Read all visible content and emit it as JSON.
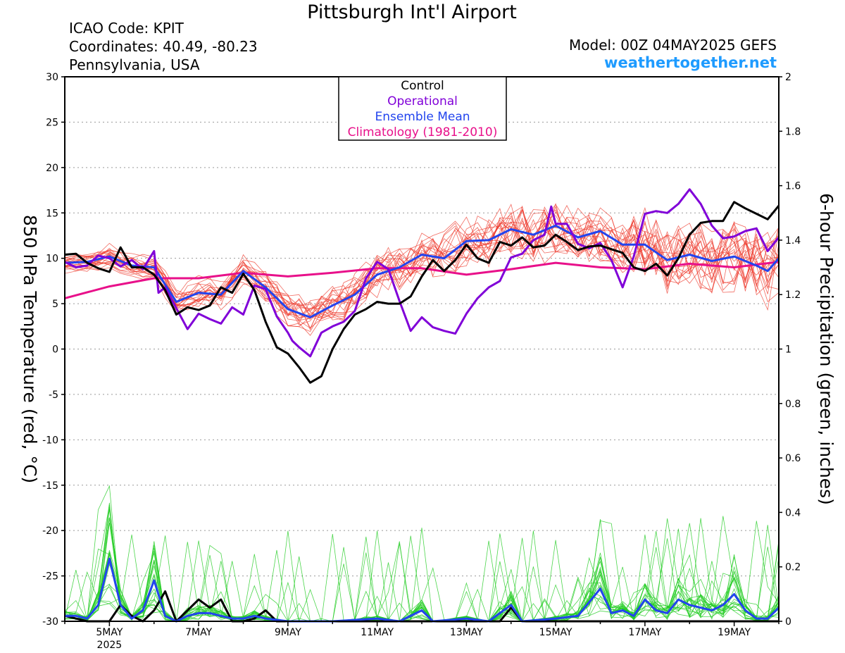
{
  "header": {
    "title": "Pittsburgh Int'l Airport",
    "icao": "ICAO Code: KPIT",
    "coords": "Coordinates: 40.49, -80.23",
    "region": "Pennsylvania, USA",
    "model": "Model: 00Z 04MAY2025 GEFS",
    "brand": "weathertogether.net"
  },
  "colors": {
    "control": "#000000",
    "operational": "#8000d8",
    "ensemble_mean": "#2244ee",
    "climatology": "#e8108a",
    "members_temp": "#ee3a2c",
    "members_precip": "#20cc20",
    "brand": "#1e9bff"
  },
  "chart_data": {
    "type": "line",
    "title": "Pittsburgh Int'l Airport",
    "xlabel": "",
    "ylabel": "850 hPa Temperature (red, °C)",
    "y2label": "6-hour Precipitation (green, inches)",
    "ylim": [
      -30,
      30
    ],
    "y2lim": [
      0,
      2
    ],
    "y_ticks": [
      30,
      25,
      20,
      15,
      10,
      5,
      0,
      -5,
      -10,
      -15,
      -20,
      -25,
      -30
    ],
    "y2_ticks": [
      2,
      1.8,
      1.6,
      1.4,
      1.2,
      1,
      0.8,
      0.6,
      0.4,
      0.2,
      0
    ],
    "x_range_days": [
      4.0,
      20.0
    ],
    "x_ticks": [
      {
        "day": 5,
        "label": "5MAY",
        "sub": "2025"
      },
      {
        "day": 7,
        "label": "7MAY",
        "sub": ""
      },
      {
        "day": 9,
        "label": "9MAY",
        "sub": ""
      },
      {
        "day": 11,
        "label": "11MAY",
        "sub": ""
      },
      {
        "day": 13,
        "label": "13MAY",
        "sub": ""
      },
      {
        "day": 15,
        "label": "15MAY",
        "sub": ""
      },
      {
        "day": 17,
        "label": "17MAY",
        "sub": ""
      },
      {
        "day": 19,
        "label": "19MAY",
        "sub": ""
      }
    ],
    "grid": "dotted horizontal",
    "legend": {
      "placement": "top-center",
      "entries": [
        {
          "label": "Control",
          "color": "#000000"
        },
        {
          "label": "Operational",
          "color": "#8000d8"
        },
        {
          "label": "Ensemble Mean",
          "color": "#2244ee"
        },
        {
          "label": "Climatology (1981-2010)",
          "color": "#e8108a"
        }
      ]
    },
    "temperature_series": [
      {
        "name": "Control",
        "color": "#000000",
        "width": 3,
        "points": [
          [
            4.0,
            10.4
          ],
          [
            4.25,
            10.5
          ],
          [
            4.5,
            9.5
          ],
          [
            4.75,
            8.9
          ],
          [
            5.0,
            8.5
          ],
          [
            5.25,
            11.2
          ],
          [
            5.5,
            9.0
          ],
          [
            5.75,
            9.0
          ],
          [
            6.0,
            8.2
          ],
          [
            6.25,
            6.5
          ],
          [
            6.5,
            3.8
          ],
          [
            6.75,
            4.6
          ],
          [
            7.0,
            4.3
          ],
          [
            7.25,
            4.8
          ],
          [
            7.5,
            6.8
          ],
          [
            7.75,
            6.2
          ],
          [
            8.0,
            8.3
          ],
          [
            8.25,
            6.5
          ],
          [
            8.5,
            3.0
          ],
          [
            8.75,
            0.2
          ],
          [
            9.0,
            -0.5
          ],
          [
            9.25,
            -2.0
          ],
          [
            9.5,
            -3.7
          ],
          [
            9.75,
            -3.0
          ],
          [
            10.0,
            0.0
          ],
          [
            10.25,
            2.2
          ],
          [
            10.5,
            3.8
          ],
          [
            10.75,
            4.4
          ],
          [
            11.0,
            5.2
          ],
          [
            11.25,
            5.0
          ],
          [
            11.5,
            5.0
          ],
          [
            11.75,
            5.8
          ],
          [
            12.0,
            8.0
          ],
          [
            12.25,
            9.8
          ],
          [
            12.5,
            8.6
          ],
          [
            12.75,
            9.8
          ],
          [
            13.0,
            11.5
          ],
          [
            13.25,
            10.0
          ],
          [
            13.5,
            9.5
          ],
          [
            13.75,
            11.8
          ],
          [
            14.0,
            11.4
          ],
          [
            14.25,
            12.3
          ],
          [
            14.5,
            11.2
          ],
          [
            14.75,
            11.4
          ],
          [
            15.0,
            12.6
          ],
          [
            15.25,
            11.8
          ],
          [
            15.5,
            10.9
          ],
          [
            15.75,
            11.3
          ],
          [
            16.0,
            11.4
          ],
          [
            16.25,
            11.0
          ],
          [
            16.5,
            10.6
          ],
          [
            16.75,
            9.0
          ],
          [
            17.0,
            8.6
          ],
          [
            17.25,
            9.4
          ],
          [
            17.5,
            8.1
          ],
          [
            17.75,
            10.0
          ],
          [
            18.0,
            12.6
          ],
          [
            18.25,
            13.9
          ],
          [
            18.5,
            14.1
          ],
          [
            18.75,
            14.1
          ],
          [
            19.0,
            16.2
          ],
          [
            19.25,
            15.5
          ],
          [
            19.5,
            14.9
          ],
          [
            19.75,
            14.3
          ],
          [
            20.0,
            15.8
          ]
        ]
      },
      {
        "name": "Operational",
        "color": "#8000d8",
        "width": 3,
        "points": [
          [
            4.0,
            9.6
          ],
          [
            4.25,
            9.0
          ],
          [
            4.5,
            9.2
          ],
          [
            4.75,
            10.3
          ],
          [
            5.0,
            10.0
          ],
          [
            5.25,
            9.1
          ],
          [
            5.5,
            9.8
          ],
          [
            5.75,
            8.8
          ],
          [
            6.0,
            10.8
          ],
          [
            6.1,
            6.2
          ],
          [
            6.25,
            6.8
          ],
          [
            6.5,
            4.5
          ],
          [
            6.75,
            2.2
          ],
          [
            7.0,
            3.9
          ],
          [
            7.25,
            3.3
          ],
          [
            7.5,
            2.8
          ],
          [
            7.75,
            4.6
          ],
          [
            8.0,
            3.8
          ],
          [
            8.25,
            7.0
          ],
          [
            8.5,
            6.6
          ],
          [
            8.75,
            3.6
          ],
          [
            9.0,
            1.8
          ],
          [
            9.1,
            0.9
          ],
          [
            9.25,
            0.2
          ],
          [
            9.5,
            -0.8
          ],
          [
            9.75,
            1.8
          ],
          [
            10.0,
            2.5
          ],
          [
            10.25,
            3.0
          ],
          [
            10.5,
            4.2
          ],
          [
            10.75,
            7.8
          ],
          [
            11.0,
            9.6
          ],
          [
            11.25,
            8.8
          ],
          [
            11.5,
            5.3
          ],
          [
            11.75,
            2.0
          ],
          [
            12.0,
            3.5
          ],
          [
            12.25,
            2.4
          ],
          [
            12.5,
            2.0
          ],
          [
            12.75,
            1.7
          ],
          [
            13.0,
            3.9
          ],
          [
            13.25,
            5.6
          ],
          [
            13.5,
            6.8
          ],
          [
            13.75,
            7.5
          ],
          [
            14.0,
            10.1
          ],
          [
            14.25,
            10.5
          ],
          [
            14.5,
            12.0
          ],
          [
            14.75,
            12.6
          ],
          [
            14.9,
            15.7
          ],
          [
            15.0,
            13.8
          ],
          [
            15.25,
            13.8
          ],
          [
            15.5,
            11.6
          ],
          [
            15.75,
            11.1
          ],
          [
            16.0,
            11.7
          ],
          [
            16.25,
            9.8
          ],
          [
            16.5,
            6.8
          ],
          [
            16.75,
            10.2
          ],
          [
            17.0,
            14.9
          ],
          [
            17.25,
            15.2
          ],
          [
            17.5,
            15.0
          ],
          [
            17.75,
            16.0
          ],
          [
            18.0,
            17.6
          ],
          [
            18.25,
            16.0
          ],
          [
            18.5,
            13.6
          ],
          [
            18.75,
            12.2
          ],
          [
            19.0,
            12.4
          ],
          [
            19.25,
            13.0
          ],
          [
            19.5,
            13.3
          ],
          [
            19.75,
            10.8
          ],
          [
            20.0,
            12.3
          ]
        ]
      },
      {
        "name": "Ensemble Mean",
        "color": "#2244ee",
        "width": 3,
        "points": [
          [
            4.0,
            9.5
          ],
          [
            4.5,
            9.6
          ],
          [
            5.0,
            10.2
          ],
          [
            5.5,
            9.2
          ],
          [
            6.0,
            9.0
          ],
          [
            6.5,
            5.2
          ],
          [
            7.0,
            6.2
          ],
          [
            7.5,
            6.0
          ],
          [
            8.0,
            8.6
          ],
          [
            8.5,
            6.8
          ],
          [
            9.0,
            4.4
          ],
          [
            9.5,
            3.5
          ],
          [
            10.0,
            4.8
          ],
          [
            10.5,
            6.0
          ],
          [
            11.0,
            8.2
          ],
          [
            11.5,
            9.0
          ],
          [
            12.0,
            10.4
          ],
          [
            12.5,
            10.0
          ],
          [
            13.0,
            11.9
          ],
          [
            13.5,
            12.0
          ],
          [
            14.0,
            13.2
          ],
          [
            14.5,
            12.6
          ],
          [
            15.0,
            13.6
          ],
          [
            15.5,
            12.3
          ],
          [
            16.0,
            13.0
          ],
          [
            16.5,
            11.5
          ],
          [
            17.0,
            11.5
          ],
          [
            17.5,
            9.8
          ],
          [
            18.0,
            10.4
          ],
          [
            18.5,
            9.7
          ],
          [
            19.0,
            10.2
          ],
          [
            19.5,
            9.2
          ],
          [
            19.75,
            8.6
          ],
          [
            20.0,
            10.0
          ]
        ]
      },
      {
        "name": "Climatology (1981-2010)",
        "color": "#e8108a",
        "width": 3,
        "points": [
          [
            4.0,
            5.6
          ],
          [
            5.0,
            6.9
          ],
          [
            6.0,
            7.8
          ],
          [
            7.0,
            7.8
          ],
          [
            8.0,
            8.4
          ],
          [
            9.0,
            8.0
          ],
          [
            10.0,
            8.4
          ],
          [
            11.0,
            8.9
          ],
          [
            12.0,
            8.9
          ],
          [
            13.0,
            8.2
          ],
          [
            14.0,
            8.8
          ],
          [
            15.0,
            9.5
          ],
          [
            16.0,
            9.0
          ],
          [
            17.0,
            8.8
          ],
          [
            18.0,
            9.4
          ],
          [
            19.0,
            9.0
          ],
          [
            20.0,
            9.6
          ]
        ]
      }
    ],
    "precipitation_series": [
      {
        "name": "Control",
        "color": "#000000",
        "width": 3,
        "points": [
          [
            4.0,
            0.02
          ],
          [
            4.25,
            0.01
          ],
          [
            4.5,
            0.0
          ],
          [
            4.75,
            0.0
          ],
          [
            5.0,
            0.0
          ],
          [
            5.25,
            0.06
          ],
          [
            5.5,
            0.02
          ],
          [
            5.75,
            0.0
          ],
          [
            6.0,
            0.04
          ],
          [
            6.25,
            0.11
          ],
          [
            6.5,
            0.0
          ],
          [
            6.75,
            0.04
          ],
          [
            7.0,
            0.08
          ],
          [
            7.25,
            0.05
          ],
          [
            7.5,
            0.08
          ],
          [
            7.75,
            0.0
          ],
          [
            8.0,
            0.0
          ],
          [
            8.25,
            0.01
          ],
          [
            8.5,
            0.04
          ],
          [
            8.75,
            0.0
          ],
          [
            9.0,
            0.0
          ],
          [
            9.5,
            0.0
          ],
          [
            10.0,
            0.0
          ],
          [
            11.0,
            0.0
          ],
          [
            12.0,
            0.0
          ],
          [
            13.0,
            0.0
          ],
          [
            13.75,
            0.0
          ],
          [
            14.0,
            0.05
          ],
          [
            14.25,
            0.0
          ],
          [
            15.0,
            0.0
          ],
          [
            16.0,
            0.0
          ],
          [
            17.0,
            0.0
          ],
          [
            18.0,
            0.0
          ],
          [
            19.0,
            0.0
          ],
          [
            20.0,
            0.0
          ]
        ]
      },
      {
        "name": "Ensemble Mean",
        "color": "#2244ee",
        "width": 3,
        "points": [
          [
            4.0,
            0.02
          ],
          [
            4.25,
            0.02
          ],
          [
            4.5,
            0.01
          ],
          [
            4.75,
            0.06
          ],
          [
            5.0,
            0.23
          ],
          [
            5.25,
            0.06
          ],
          [
            5.5,
            0.01
          ],
          [
            5.75,
            0.04
          ],
          [
            6.0,
            0.15
          ],
          [
            6.25,
            0.02
          ],
          [
            6.5,
            0.0
          ],
          [
            6.75,
            0.02
          ],
          [
            7.0,
            0.03
          ],
          [
            7.25,
            0.03
          ],
          [
            7.5,
            0.02
          ],
          [
            7.75,
            0.01
          ],
          [
            8.0,
            0.01
          ],
          [
            8.25,
            0.02
          ],
          [
            8.5,
            0.01
          ],
          [
            9.0,
            0.0
          ],
          [
            9.5,
            0.0
          ],
          [
            10.0,
            0.0
          ],
          [
            11.0,
            0.01
          ],
          [
            11.5,
            0.0
          ],
          [
            12.0,
            0.04
          ],
          [
            12.25,
            0.0
          ],
          [
            13.0,
            0.01
          ],
          [
            13.5,
            0.0
          ],
          [
            14.0,
            0.06
          ],
          [
            14.25,
            0.0
          ],
          [
            15.0,
            0.01
          ],
          [
            15.5,
            0.02
          ],
          [
            16.0,
            0.12
          ],
          [
            16.25,
            0.03
          ],
          [
            16.5,
            0.04
          ],
          [
            16.75,
            0.02
          ],
          [
            17.0,
            0.08
          ],
          [
            17.25,
            0.04
          ],
          [
            17.5,
            0.03
          ],
          [
            17.75,
            0.08
          ],
          [
            18.0,
            0.06
          ],
          [
            18.5,
            0.04
          ],
          [
            18.75,
            0.06
          ],
          [
            19.0,
            0.1
          ],
          [
            19.25,
            0.04
          ],
          [
            19.5,
            0.01
          ],
          [
            19.75,
            0.01
          ],
          [
            20.0,
            0.05
          ]
        ]
      }
    ]
  }
}
